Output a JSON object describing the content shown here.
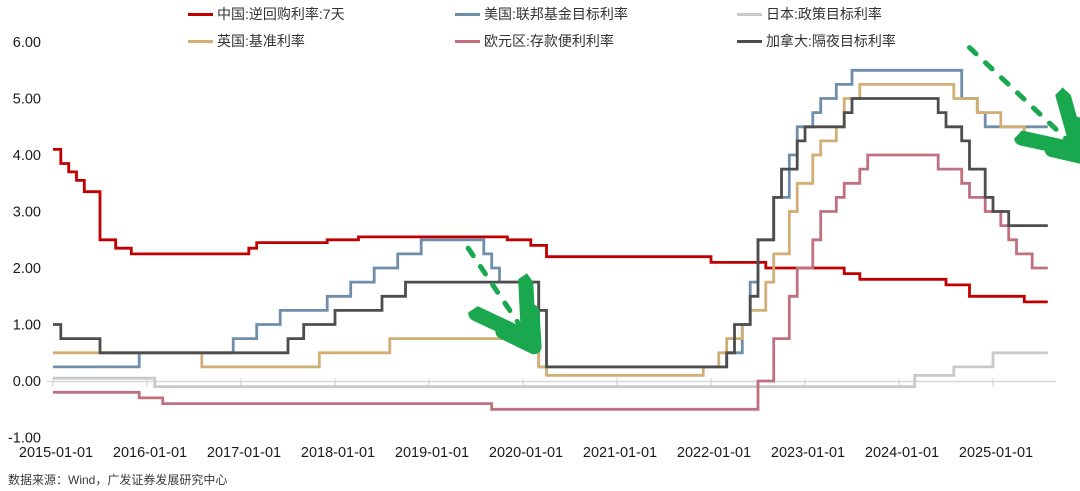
{
  "legend": {
    "items": [
      {
        "id": "china",
        "label": "中国:逆回购利率:7天",
        "color": "#C00000"
      },
      {
        "id": "us",
        "label": "美国:联邦基金目标利率",
        "color": "#6F8EAB"
      },
      {
        "id": "japan",
        "label": "日本:政策目标利率",
        "color": "#C9C9C9"
      },
      {
        "id": "uk",
        "label": "英国:基准利率",
        "color": "#D0AE74"
      },
      {
        "id": "eurozone",
        "label": "欧元区:存款便利利率",
        "color": "#C17080"
      },
      {
        "id": "canada",
        "label": "加拿大:隔夜目标利率",
        "color": "#4D4D4D"
      }
    ]
  },
  "chart_data": {
    "type": "line",
    "step": true,
    "title": "",
    "xlabel": "",
    "ylabel": "",
    "grid": false,
    "legend_position": "top",
    "ylim": [
      -1.0,
      6.0
    ],
    "y_ticks": [
      "6.00",
      "5.00",
      "4.00",
      "3.00",
      "2.00",
      "1.00",
      "0.00",
      "-1.00"
    ],
    "x_ticks": [
      "2015-01-01",
      "2016-01-01",
      "2017-01-01",
      "2018-01-01",
      "2019-01-01",
      "2020-01-01",
      "2021-01-01",
      "2022-01-01",
      "2023-01-01",
      "2024-01-01",
      "2025-01-01"
    ],
    "x_end": "2025-08",
    "series": [
      {
        "id": "china",
        "name": "中国:逆回购利率:7天",
        "color": "#C00000",
        "points": [
          [
            "2015-01",
            4.1
          ],
          [
            "2015-02",
            3.85
          ],
          [
            "2015-03",
            3.7
          ],
          [
            "2015-04",
            3.55
          ],
          [
            "2015-05",
            3.35
          ],
          [
            "2015-07",
            2.5
          ],
          [
            "2015-09",
            2.35
          ],
          [
            "2015-11",
            2.25
          ],
          [
            "2017-02",
            2.35
          ],
          [
            "2017-03",
            2.45
          ],
          [
            "2017-12",
            2.5
          ],
          [
            "2018-04",
            2.55
          ],
          [
            "2019-11",
            2.5
          ],
          [
            "2020-02",
            2.4
          ],
          [
            "2020-04",
            2.2
          ],
          [
            "2022-01",
            2.1
          ],
          [
            "2022-08",
            2.0
          ],
          [
            "2023-06",
            1.9
          ],
          [
            "2023-08",
            1.8
          ],
          [
            "2024-07",
            1.7
          ],
          [
            "2024-10",
            1.5
          ],
          [
            "2025-05",
            1.4
          ]
        ]
      },
      {
        "id": "us",
        "name": "美国:联邦基金目标利率",
        "color": "#6F8EAB",
        "points": [
          [
            "2015-01",
            0.25
          ],
          [
            "2015-12",
            0.5
          ],
          [
            "2016-12",
            0.75
          ],
          [
            "2017-03",
            1.0
          ],
          [
            "2017-06",
            1.25
          ],
          [
            "2017-12",
            1.5
          ],
          [
            "2018-03",
            1.75
          ],
          [
            "2018-06",
            2.0
          ],
          [
            "2018-09",
            2.25
          ],
          [
            "2018-12",
            2.5
          ],
          [
            "2019-08",
            2.25
          ],
          [
            "2019-09",
            2.0
          ],
          [
            "2019-10",
            1.75
          ],
          [
            "2020-03",
            0.25
          ],
          [
            "2022-03",
            0.5
          ],
          [
            "2022-05",
            1.0
          ],
          [
            "2022-06",
            1.75
          ],
          [
            "2022-07",
            2.5
          ],
          [
            "2022-09",
            3.25
          ],
          [
            "2022-11",
            4.0
          ],
          [
            "2022-12",
            4.5
          ],
          [
            "2023-02",
            4.75
          ],
          [
            "2023-03",
            5.0
          ],
          [
            "2023-05",
            5.25
          ],
          [
            "2023-07",
            5.5
          ],
          [
            "2024-09",
            5.0
          ],
          [
            "2024-11",
            4.75
          ],
          [
            "2024-12",
            4.5
          ]
        ]
      },
      {
        "id": "japan",
        "name": "日本:政策目标利率",
        "color": "#C9C9C9",
        "points": [
          [
            "2015-01",
            0.05
          ],
          [
            "2016-02",
            -0.1
          ],
          [
            "2024-03",
            0.1
          ],
          [
            "2024-08",
            0.25
          ],
          [
            "2025-01",
            0.5
          ]
        ]
      },
      {
        "id": "uk",
        "name": "英国:基准利率",
        "color": "#D0AE74",
        "points": [
          [
            "2015-01",
            0.5
          ],
          [
            "2016-08",
            0.25
          ],
          [
            "2017-11",
            0.5
          ],
          [
            "2018-08",
            0.75
          ],
          [
            "2020-03",
            0.25
          ],
          [
            "2020-04",
            0.1
          ],
          [
            "2021-12",
            0.25
          ],
          [
            "2022-02",
            0.5
          ],
          [
            "2022-03",
            0.75
          ],
          [
            "2022-05",
            1.0
          ],
          [
            "2022-06",
            1.25
          ],
          [
            "2022-08",
            1.75
          ],
          [
            "2022-09",
            2.25
          ],
          [
            "2022-11",
            3.0
          ],
          [
            "2022-12",
            3.5
          ],
          [
            "2023-02",
            4.0
          ],
          [
            "2023-03",
            4.25
          ],
          [
            "2023-05",
            4.5
          ],
          [
            "2023-06",
            5.0
          ],
          [
            "2023-08",
            5.25
          ],
          [
            "2024-08",
            5.0
          ],
          [
            "2024-11",
            4.75
          ],
          [
            "2025-02",
            4.5
          ],
          [
            "2025-05",
            4.25
          ]
        ]
      },
      {
        "id": "eurozone",
        "name": "欧元区:存款便利利率",
        "color": "#C17080",
        "points": [
          [
            "2015-01",
            -0.2
          ],
          [
            "2015-12",
            -0.3
          ],
          [
            "2016-03",
            -0.4
          ],
          [
            "2019-09",
            -0.5
          ],
          [
            "2022-07",
            0.0
          ],
          [
            "2022-09",
            0.75
          ],
          [
            "2022-11",
            1.5
          ],
          [
            "2022-12",
            2.0
          ],
          [
            "2023-02",
            2.5
          ],
          [
            "2023-03",
            3.0
          ],
          [
            "2023-05",
            3.25
          ],
          [
            "2023-06",
            3.5
          ],
          [
            "2023-08",
            3.75
          ],
          [
            "2023-09",
            4.0
          ],
          [
            "2024-06",
            3.75
          ],
          [
            "2024-09",
            3.5
          ],
          [
            "2024-10",
            3.25
          ],
          [
            "2024-12",
            3.0
          ],
          [
            "2025-02",
            2.75
          ],
          [
            "2025-03",
            2.5
          ],
          [
            "2025-04",
            2.25
          ],
          [
            "2025-06",
            2.0
          ]
        ]
      },
      {
        "id": "canada",
        "name": "加拿大:隔夜目标利率",
        "color": "#4D4D4D",
        "points": [
          [
            "2015-01",
            1.0
          ],
          [
            "2015-02",
            0.75
          ],
          [
            "2015-07",
            0.5
          ],
          [
            "2017-07",
            0.75
          ],
          [
            "2017-09",
            1.0
          ],
          [
            "2018-01",
            1.25
          ],
          [
            "2018-07",
            1.5
          ],
          [
            "2018-10",
            1.75
          ],
          [
            "2020-03",
            1.25
          ],
          [
            "2020-04",
            0.25
          ],
          [
            "2022-03",
            0.5
          ],
          [
            "2022-04",
            1.0
          ],
          [
            "2022-06",
            1.5
          ],
          [
            "2022-07",
            2.5
          ],
          [
            "2022-09",
            3.25
          ],
          [
            "2022-10",
            3.75
          ],
          [
            "2022-12",
            4.25
          ],
          [
            "2023-01",
            4.5
          ],
          [
            "2023-06",
            4.75
          ],
          [
            "2023-07",
            5.0
          ],
          [
            "2024-06",
            4.75
          ],
          [
            "2024-07",
            4.5
          ],
          [
            "2024-09",
            4.25
          ],
          [
            "2024-10",
            3.75
          ],
          [
            "2024-12",
            3.25
          ],
          [
            "2025-01",
            3.0
          ],
          [
            "2025-03",
            2.75
          ]
        ]
      }
    ],
    "annotations": [
      {
        "type": "dashed-arrow",
        "color": "#19A84E",
        "from": [
          "2019-06",
          2.35
        ],
        "to": [
          "2020-01",
          0.9
        ]
      },
      {
        "type": "dashed-arrow",
        "color": "#19A84E",
        "from": [
          "2024-10",
          5.9
        ],
        "to": [
          "2025-11",
          4.2
        ]
      }
    ]
  },
  "footer": {
    "source": "数据来源：Wind，广发证券发展研究中心"
  }
}
